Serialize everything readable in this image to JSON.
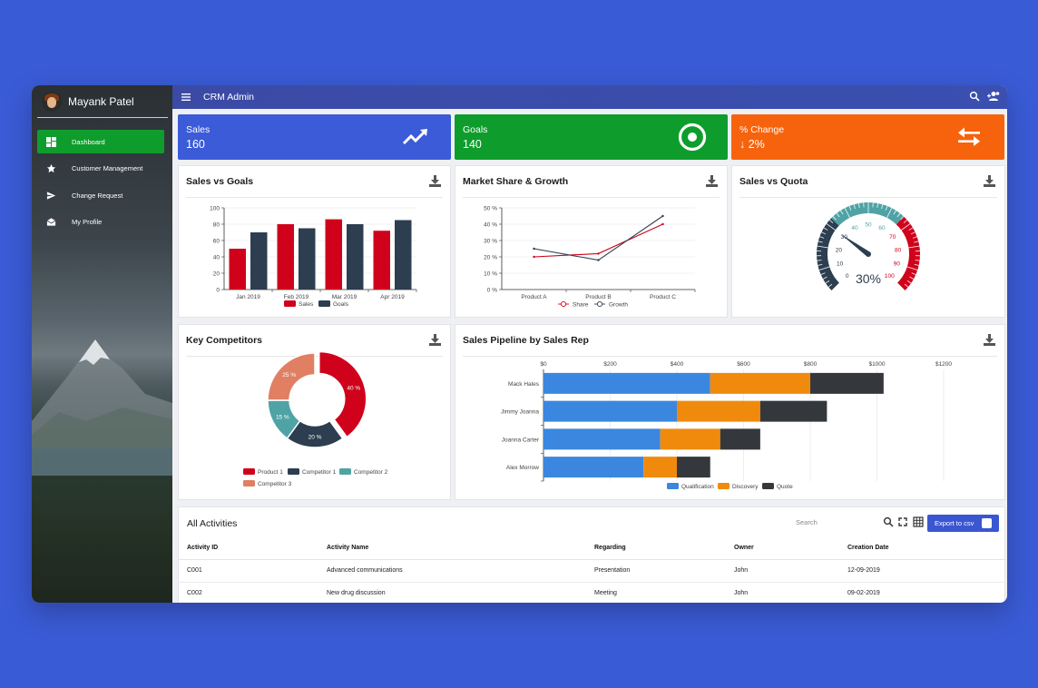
{
  "sidebar": {
    "user_name": "Mayank Patel",
    "items": [
      {
        "label": "Dashboard",
        "icon": "dashboard-icon",
        "active": true
      },
      {
        "label": "Customer Management",
        "icon": "star-icon",
        "active": false
      },
      {
        "label": "Change Request",
        "icon": "send-icon",
        "active": false
      },
      {
        "label": "My Profile",
        "icon": "mail-icon",
        "active": false
      }
    ]
  },
  "topbar": {
    "title": "CRM Admin"
  },
  "kpis": [
    {
      "label": "Sales",
      "value": "160",
      "color": "#3b5bd8",
      "icon": "trending-up-icon"
    },
    {
      "label": "Goals",
      "value": "140",
      "color": "#0e9d2c",
      "icon": "target-icon"
    },
    {
      "label": "% Change",
      "value": "2%",
      "color": "#f7630c",
      "icon": "swap-arrows-icon"
    }
  ],
  "cards": {
    "sales_vs_goals": "Sales vs Goals",
    "market_share": "Market Share & Growth",
    "sales_vs_quota": "Sales vs Quota",
    "key_competitors": "Key Competitors",
    "pipeline": "Sales Pipeline by Sales Rep"
  },
  "chart_data": [
    {
      "type": "bar",
      "title": "Sales vs Goals",
      "categories": [
        "Jan 2019",
        "Feb 2019",
        "Mar 2019",
        "Apr 2019"
      ],
      "series": [
        {
          "name": "Sales",
          "values": [
            50,
            80,
            86,
            72
          ],
          "color": "#d0021b"
        },
        {
          "name": "Goals",
          "values": [
            70,
            75,
            80,
            85
          ],
          "color": "#2c3e50"
        }
      ],
      "ylim": [
        0,
        100
      ],
      "yticks": [
        0,
        20,
        40,
        60,
        80,
        100
      ],
      "legend": "bottom"
    },
    {
      "type": "line",
      "title": "Market Share & Growth",
      "categories": [
        "Product A",
        "Product B",
        "Product C"
      ],
      "series": [
        {
          "name": "Share",
          "values": [
            20,
            22,
            40
          ],
          "color": "#d0021b"
        },
        {
          "name": "Growth",
          "values": [
            25,
            18,
            45
          ],
          "color": "#2c3e50"
        }
      ],
      "ylim": [
        0,
        50
      ],
      "yticks": [
        "0 %",
        "10 %",
        "20 %",
        "30 %",
        "40 %",
        "50 %"
      ],
      "legend": "bottom"
    },
    {
      "type": "gauge",
      "title": "Sales vs Quota",
      "value": 30,
      "value_label": "30%",
      "range": [
        0,
        100
      ],
      "ticks": [
        "0",
        "10",
        "20",
        "30",
        "40",
        "50",
        "60",
        "70",
        "80",
        "90",
        "100"
      ]
    },
    {
      "type": "pie",
      "title": "Key Competitors",
      "slices": [
        {
          "name": "Product 1",
          "value": 40,
          "label": "40 %",
          "color": "#d0021b"
        },
        {
          "name": "Competitor 1",
          "value": 20,
          "label": "20 %",
          "color": "#2c3e50"
        },
        {
          "name": "Competitor 2",
          "value": 15,
          "label": "15 %",
          "color": "#4fa3a5"
        },
        {
          "name": "Competitor 3",
          "value": 25,
          "label": "25 %",
          "color": "#e07f62"
        }
      ],
      "legend": "bottom"
    },
    {
      "type": "bar",
      "orientation": "horizontal",
      "stacked": true,
      "title": "Sales Pipeline by Sales Rep",
      "categories": [
        "Mack Hales",
        "Jimmy Joanna",
        "Joanna Carter",
        "Alex Morrow"
      ],
      "series": [
        {
          "name": "Qualification",
          "values": [
            500,
            400,
            350,
            300
          ],
          "color": "#3b87df"
        },
        {
          "name": "Discovery",
          "values": [
            300,
            250,
            180,
            100
          ],
          "color": "#f08a0d"
        },
        {
          "name": "Quote",
          "values": [
            220,
            200,
            120,
            100
          ],
          "color": "#34383c"
        }
      ],
      "xlim": [
        0,
        1200
      ],
      "xticks": [
        "$0",
        "$200",
        "$400",
        "$600",
        "$800",
        "$1000",
        "$1200"
      ],
      "legend": "bottom"
    }
  ],
  "activities": {
    "title": "All Activities",
    "search_placeholder": "Search",
    "export_label": "Export to csv",
    "columns": [
      "Activity ID",
      "Activity Name",
      "Regarding",
      "Owner",
      "Creation Date"
    ],
    "rows": [
      [
        "C001",
        "Advanced communications",
        "Presentation",
        "John",
        "12-09-2019"
      ],
      [
        "C002",
        "New drug discussion",
        "Meeting",
        "John",
        "09-02-2019"
      ]
    ]
  }
}
